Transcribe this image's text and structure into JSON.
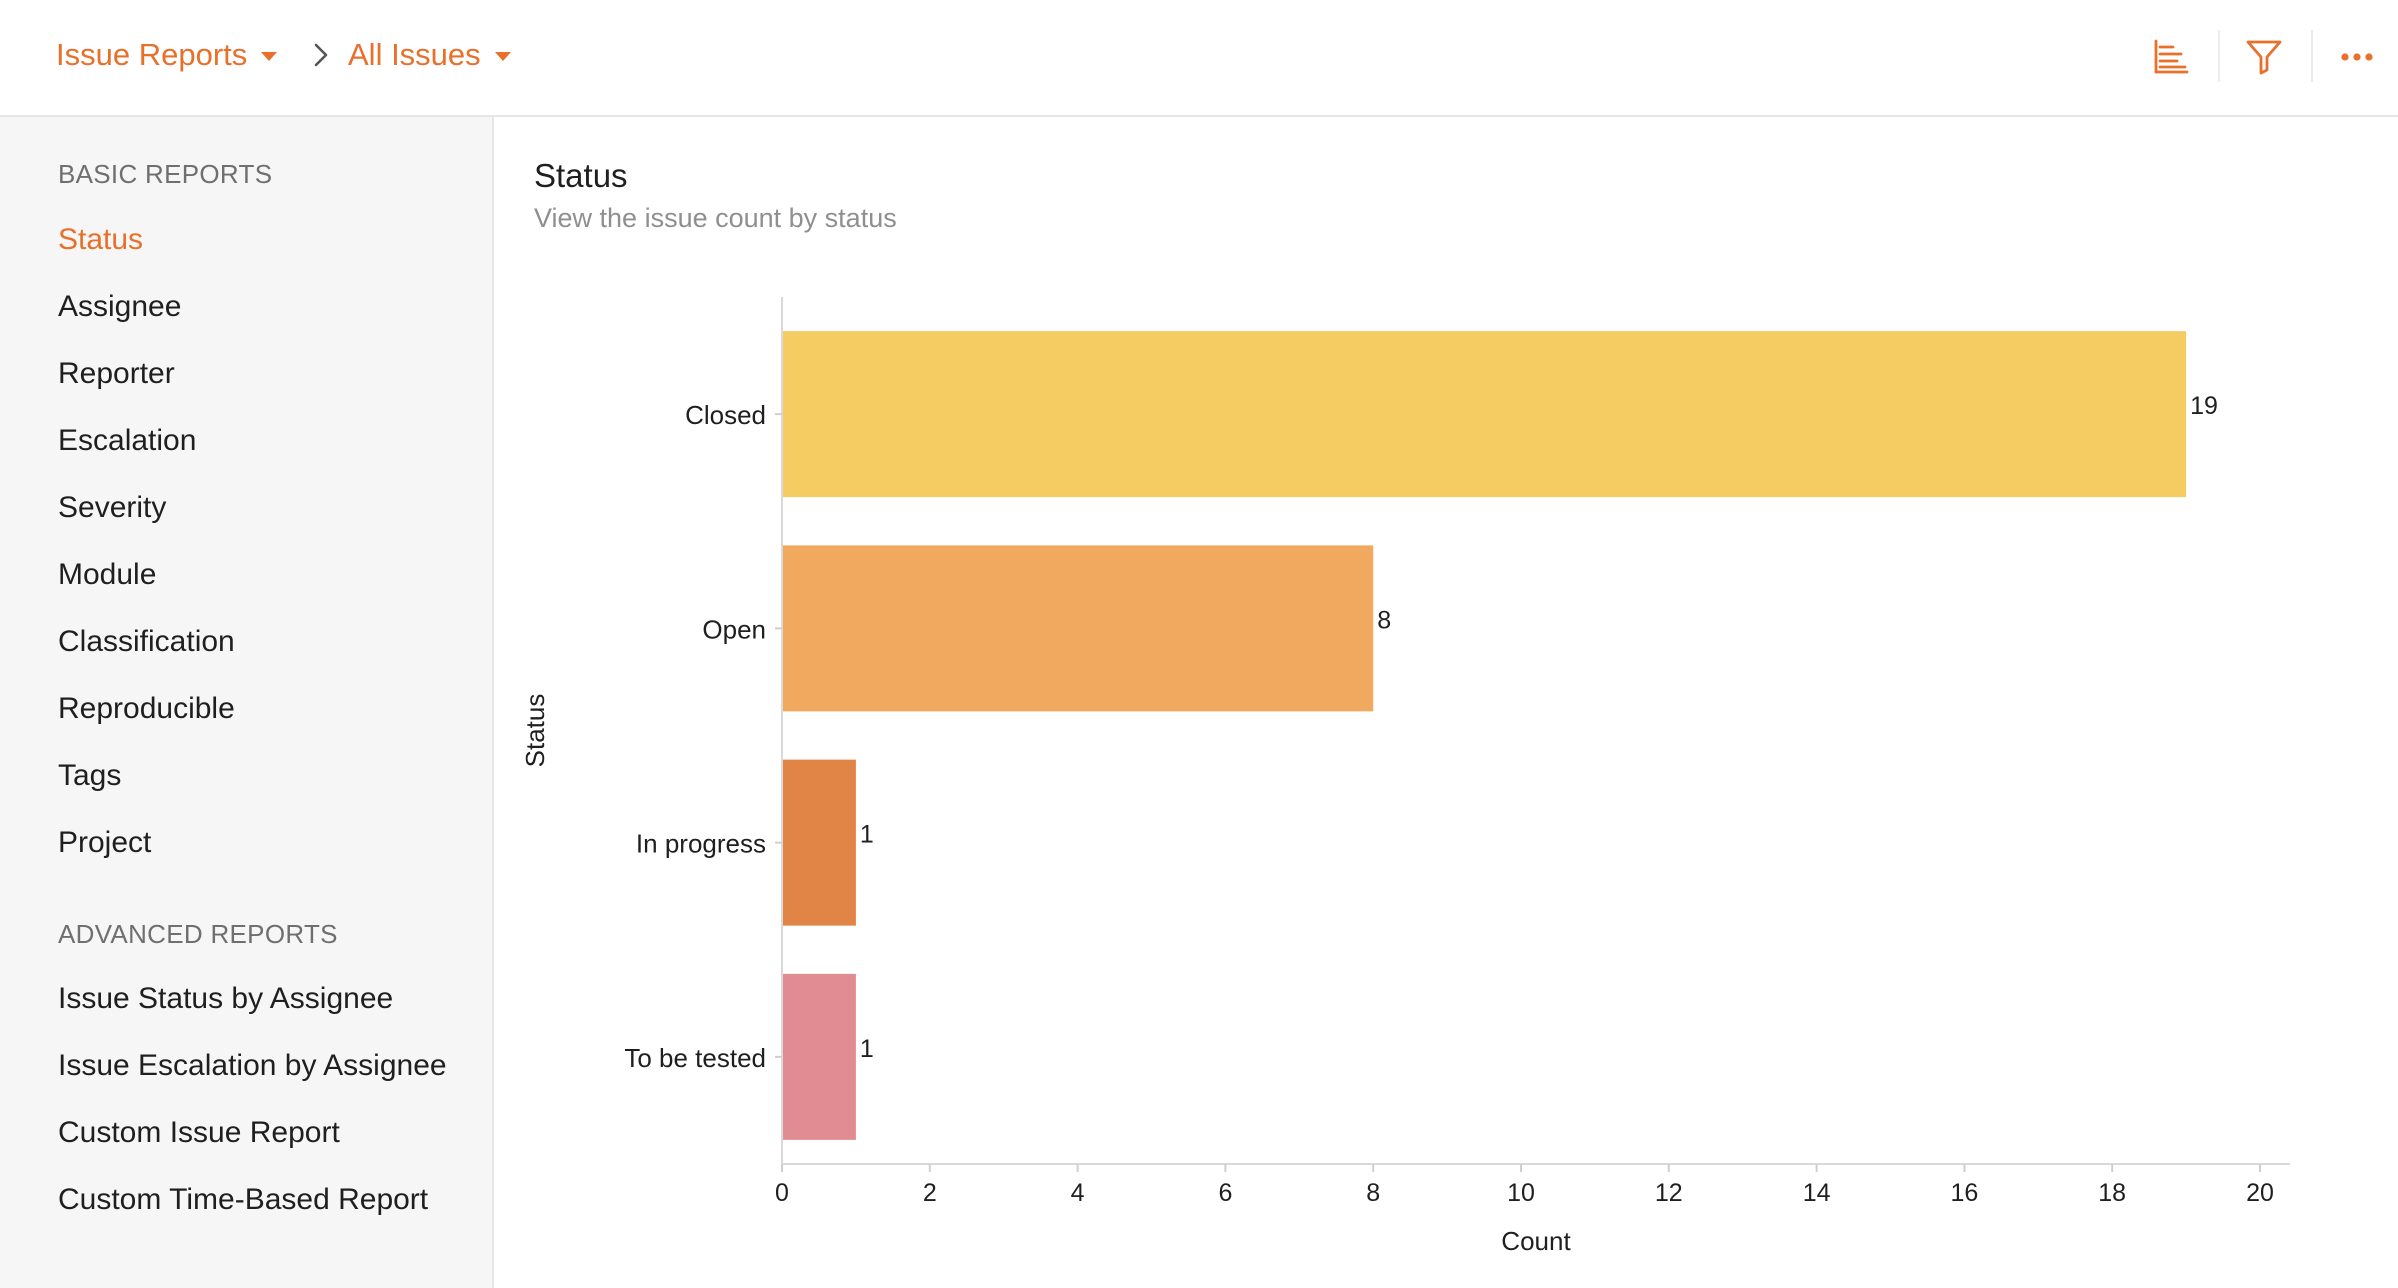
{
  "breadcrumb": {
    "root_label": "Issue Reports",
    "current_label": "All Issues"
  },
  "toolbar": {
    "icons": [
      "bar-chart-icon",
      "filter-icon",
      "more-icon"
    ],
    "accent_color": "#e8702a"
  },
  "sidebar": {
    "basic_title": "BASIC REPORTS",
    "basic_items": [
      {
        "label": "Status",
        "active": true
      },
      {
        "label": "Assignee"
      },
      {
        "label": "Reporter"
      },
      {
        "label": "Escalation"
      },
      {
        "label": "Severity"
      },
      {
        "label": "Module"
      },
      {
        "label": "Classification"
      },
      {
        "label": "Reproducible"
      },
      {
        "label": "Tags"
      },
      {
        "label": "Project"
      }
    ],
    "advanced_title": "ADVANCED REPORTS",
    "advanced_items": [
      {
        "label": "Issue Status by Assignee"
      },
      {
        "label": "Issue Escalation by Assignee"
      },
      {
        "label": "Custom Issue Report"
      },
      {
        "label": "Custom Time-Based Report"
      }
    ]
  },
  "report": {
    "title": "Status",
    "subtitle": "View the issue count by status"
  },
  "chart_data": {
    "type": "bar",
    "orientation": "horizontal",
    "categories": [
      "Closed",
      "Open",
      "In progress",
      "To be tested"
    ],
    "values": [
      19,
      8,
      1,
      1
    ],
    "colors": [
      "#f5cc62",
      "#f0a95e",
      "#e08545",
      "#e08c92"
    ],
    "data_labels": [
      "19",
      "8",
      "1",
      "1"
    ],
    "xlabel": "Count",
    "ylabel": "Status",
    "xlim": [
      0,
      20
    ],
    "xticks": [
      0,
      2,
      4,
      6,
      8,
      10,
      12,
      14,
      16,
      18,
      20
    ],
    "grid": false,
    "legend": "none"
  }
}
